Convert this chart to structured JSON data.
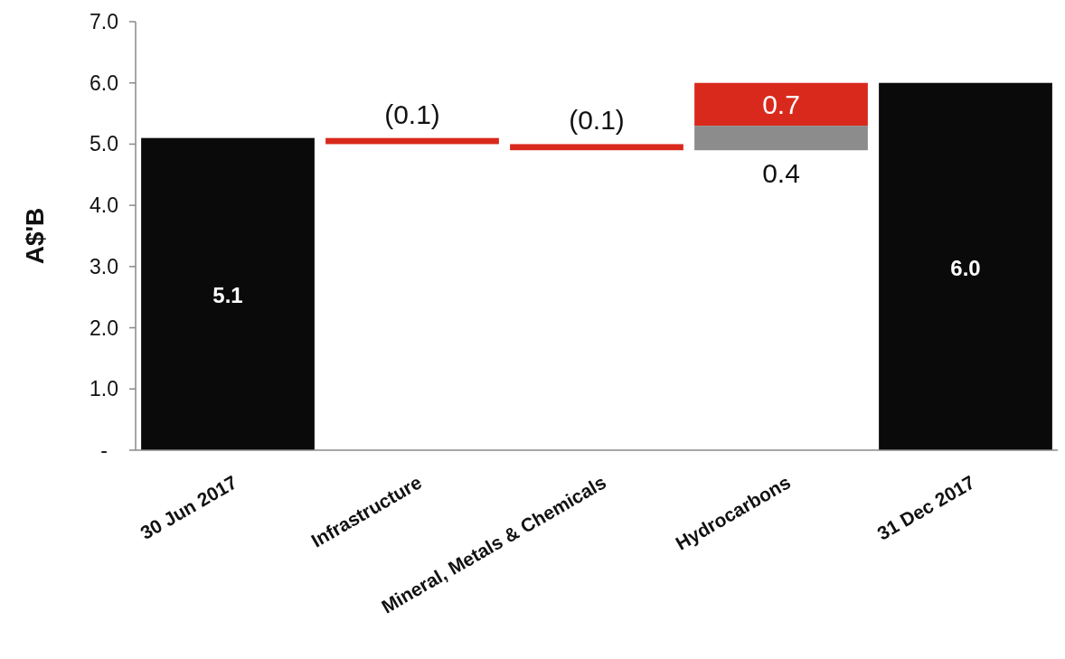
{
  "chart_data": {
    "type": "bar",
    "ylabel": "A$'B",
    "categories": [
      "30 Jun 2017",
      "Infrastructure",
      "Mineral, Metals & Chemicals",
      "Hydrocarbons",
      "31 Dec 2017"
    ],
    "ylim": [
      0,
      7
    ],
    "yticks": [
      {
        "value": 0,
        "label": "-"
      },
      {
        "value": 1,
        "label": "1.0"
      },
      {
        "value": 2,
        "label": "2.0"
      },
      {
        "value": 3,
        "label": "3.0"
      },
      {
        "value": 4,
        "label": "4.0"
      },
      {
        "value": 5,
        "label": "5.0"
      },
      {
        "value": 6,
        "label": "6.0"
      },
      {
        "value": 7,
        "label": "7.0"
      }
    ],
    "grid": false,
    "series": [
      {
        "color": "#0a0a0a",
        "values": [
          5.1,
          null,
          null,
          null,
          6.0
        ],
        "base": [
          0,
          null,
          null,
          null,
          0
        ],
        "value_labels": [
          "5.1",
          null,
          null,
          null,
          "6.0"
        ]
      },
      {
        "color": "#d9291c",
        "values": [
          null,
          -0.1,
          -0.1,
          0.7,
          null
        ],
        "base": [
          null,
          5.1,
          5.0,
          5.3,
          null
        ],
        "value_labels": [
          null,
          "(0.1)",
          "(0.1)",
          "0.7",
          null
        ]
      },
      {
        "color": "#8c8c8c",
        "values": [
          null,
          null,
          null,
          0.4,
          null
        ],
        "base": [
          null,
          null,
          null,
          4.9,
          null
        ],
        "value_labels": [
          null,
          null,
          null,
          "0.4",
          null
        ]
      }
    ]
  }
}
